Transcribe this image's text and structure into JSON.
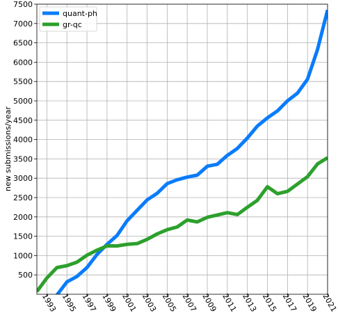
{
  "chart_data": {
    "type": "line",
    "title": "",
    "xlabel": "",
    "ylabel": "new submissions/year",
    "xlim": [
      1992,
      2021
    ],
    "ylim": [
      0,
      7500
    ],
    "grid": true,
    "legend_position": "top-left",
    "x_ticks": [
      "1993",
      "1995",
      "1997",
      "1999",
      "2001",
      "2003",
      "2005",
      "2007",
      "2009",
      "2011",
      "2013",
      "2015",
      "2017",
      "2019",
      "2021"
    ],
    "y_ticks": [
      "500",
      "1000",
      "1500",
      "2000",
      "2500",
      "3000",
      "3500",
      "4000",
      "4500",
      "5000",
      "5500",
      "6000",
      "6500",
      "7000",
      "7500"
    ],
    "x": [
      1992,
      1993,
      1994,
      1995,
      1996,
      1997,
      1998,
      1999,
      2000,
      2001,
      2002,
      2003,
      2004,
      2005,
      2006,
      2007,
      2008,
      2009,
      2010,
      2011,
      2012,
      2013,
      2014,
      2015,
      2016,
      2017,
      2018,
      2019,
      2020,
      2021
    ],
    "series": [
      {
        "name": "quant-ph",
        "color": "#0a7cfa",
        "values": [
          null,
          null,
          -20,
          320,
          460,
          690,
          1030,
          1290,
          1520,
          1900,
          2170,
          2440,
          2610,
          2860,
          2960,
          3030,
          3080,
          3310,
          3360,
          3590,
          3770,
          4040,
          4350,
          4560,
          4740,
          5000,
          5200,
          5560,
          6330,
          7350
        ]
      },
      {
        "name": "gr-qc",
        "color": "#2ca02c",
        "values": [
          70,
          420,
          690,
          740,
          830,
          1010,
          1140,
          1250,
          1250,
          1290,
          1310,
          1420,
          1560,
          1670,
          1740,
          1920,
          1870,
          1990,
          2050,
          2110,
          2060,
          2250,
          2430,
          2780,
          2600,
          2660,
          2850,
          3040,
          3370,
          3530
        ]
      }
    ]
  }
}
